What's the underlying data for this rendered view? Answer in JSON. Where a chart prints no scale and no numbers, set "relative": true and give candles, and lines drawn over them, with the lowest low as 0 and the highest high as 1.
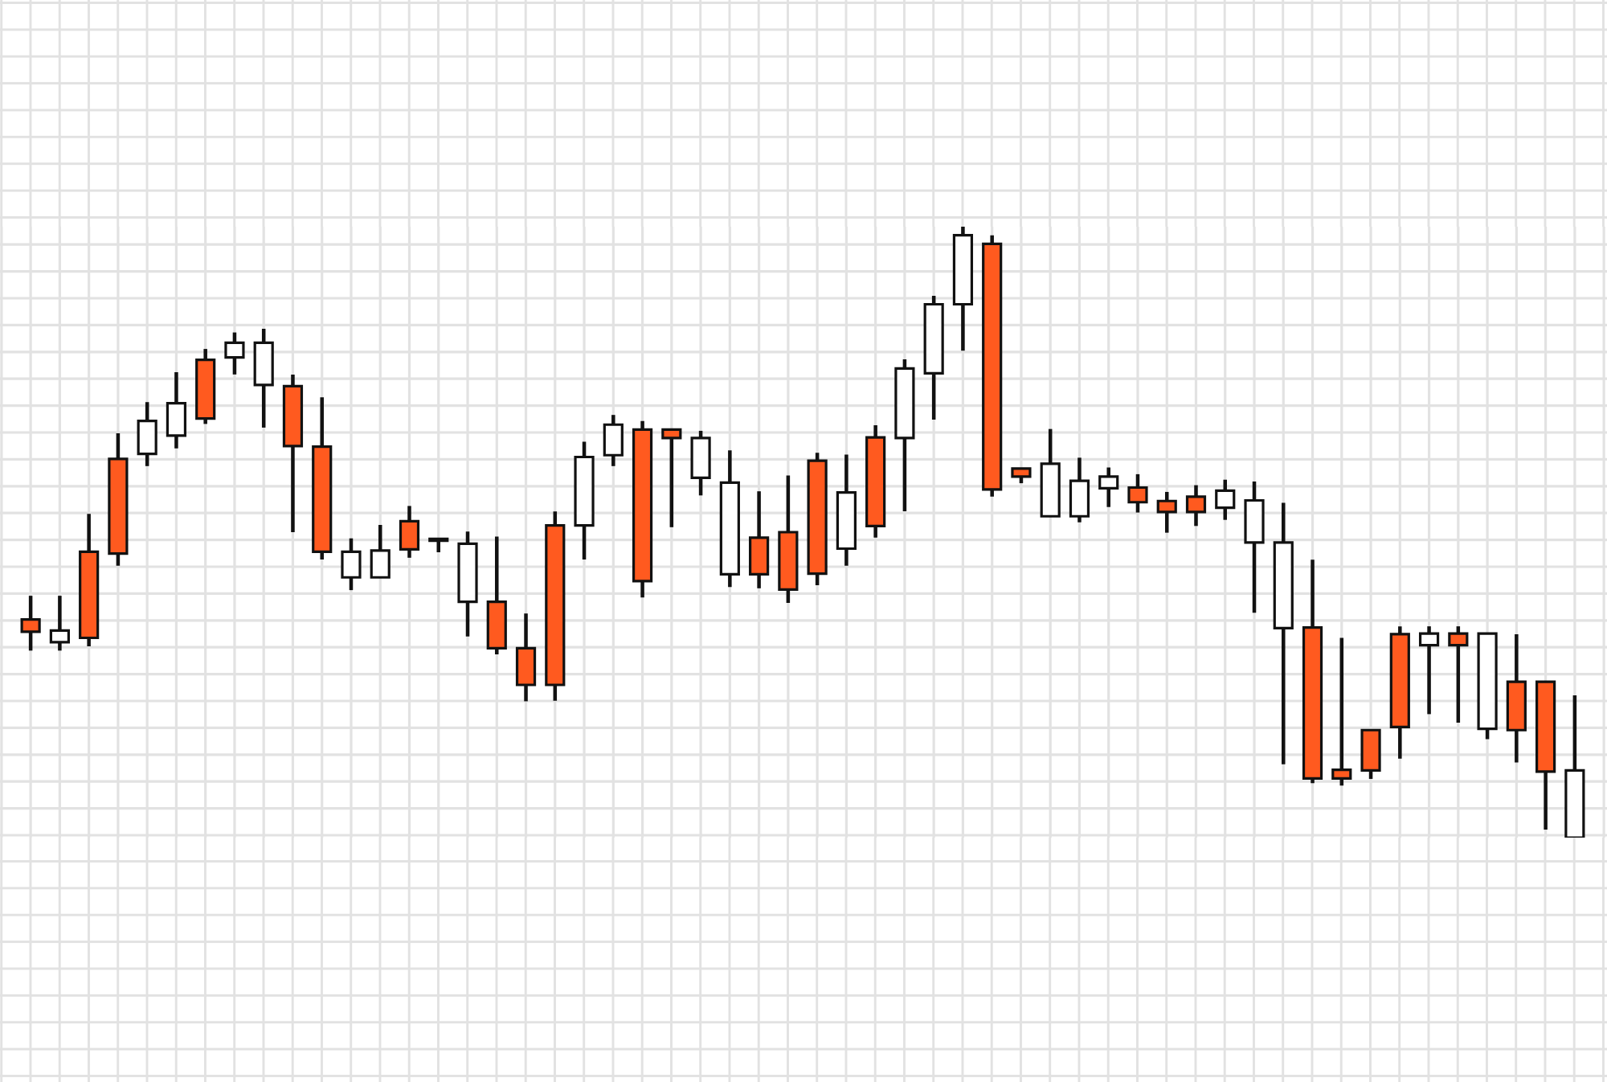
{
  "chart_data": {
    "type": "candlestick",
    "relative": true,
    "grid": true,
    "categories": [
      null,
      null,
      null,
      null,
      null,
      null,
      null,
      null,
      null,
      null,
      null,
      null,
      null,
      null,
      null,
      null,
      null,
      null,
      null,
      null,
      null,
      null,
      null,
      null,
      null,
      null,
      null,
      null,
      null,
      null,
      null,
      null,
      null,
      null,
      null,
      null,
      null,
      null,
      null,
      null,
      null,
      null,
      null,
      null,
      null,
      null,
      null,
      null,
      null,
      null,
      null,
      null,
      null,
      null
    ],
    "ohlc": [
      [
        0.357,
        0.395,
        0.307,
        0.337
      ],
      [
        0.32,
        0.395,
        0.307,
        0.339
      ],
      [
        0.468,
        0.529,
        0.314,
        0.327
      ],
      [
        0.62,
        0.661,
        0.446,
        0.465
      ],
      [
        0.628,
        0.712,
        0.609,
        0.682
      ],
      [
        0.658,
        0.761,
        0.638,
        0.711
      ],
      [
        0.782,
        0.799,
        0.678,
        0.686
      ],
      [
        0.786,
        0.826,
        0.759,
        0.81
      ],
      [
        0.741,
        0.832,
        0.672,
        0.81
      ],
      [
        0.739,
        0.757,
        0.501,
        0.641
      ],
      [
        0.64,
        0.72,
        0.456,
        0.468
      ],
      [
        0.426,
        0.489,
        0.406,
        0.468
      ],
      [
        0.426,
        0.511,
        0.426,
        0.47
      ],
      [
        0.518,
        0.542,
        0.459,
        0.472
      ],
      [
        0.486,
        0.489,
        0.468,
        0.489
      ],
      [
        0.386,
        0.5,
        0.33,
        0.481
      ],
      [
        0.386,
        0.492,
        0.301,
        0.31
      ],
      [
        0.31,
        0.366,
        0.224,
        0.25
      ],
      [
        0.511,
        0.533,
        0.225,
        0.25
      ],
      [
        0.511,
        0.647,
        0.456,
        0.623
      ],
      [
        0.626,
        0.691,
        0.609,
        0.676
      ],
      [
        0.668,
        0.681,
        0.394,
        0.42
      ],
      [
        0.668,
        0.668,
        0.509,
        0.654
      ],
      [
        0.589,
        0.665,
        0.561,
        0.654
      ],
      [
        0.431,
        0.633,
        0.411,
        0.581
      ],
      [
        0.491,
        0.566,
        0.409,
        0.431
      ],
      [
        0.5,
        0.592,
        0.385,
        0.406
      ],
      [
        0.617,
        0.629,
        0.414,
        0.432
      ],
      [
        0.473,
        0.626,
        0.446,
        0.565
      ],
      [
        0.655,
        0.674,
        0.492,
        0.51
      ],
      [
        0.654,
        0.782,
        0.535,
        0.768
      ],
      [
        0.76,
        0.886,
        0.685,
        0.873
      ],
      [
        0.873,
        1,
        0.798,
        0.986
      ],
      [
        0.972,
        0.985,
        0.559,
        0.57
      ],
      [
        0.604,
        0.604,
        0.581,
        0.591
      ],
      [
        0.526,
        0.668,
        0.526,
        0.612
      ],
      [
        0.526,
        0.621,
        0.517,
        0.584
      ],
      [
        0.572,
        0.605,
        0.542,
        0.591
      ],
      [
        0.573,
        0.594,
        0.533,
        0.549
      ],
      [
        0.551,
        0.565,
        0.5,
        0.533
      ],
      [
        0.558,
        0.576,
        0.511,
        0.533
      ],
      [
        0.54,
        0.585,
        0.521,
        0.568
      ],
      [
        0.483,
        0.582,
        0.369,
        0.552
      ],
      [
        0.343,
        0.547,
        0.121,
        0.483
      ],
      [
        0.344,
        0.454,
        0.09,
        0.097
      ],
      [
        0.111,
        0.326,
        0.086,
        0.097
      ],
      [
        0.176,
        0.176,
        0.097,
        0.11
      ],
      [
        0.333,
        0.345,
        0.13,
        0.181
      ],
      [
        0.315,
        0.345,
        0.203,
        0.334
      ],
      [
        0.334,
        0.345,
        0.189,
        0.315
      ],
      [
        0.178,
        0.334,
        0.162,
        0.334
      ],
      [
        0.255,
        0.332,
        0.124,
        0.176
      ],
      [
        0.255,
        0.255,
        0.014,
        0.108
      ],
      [
        0,
        0.232,
        0,
        0.11
      ]
    ],
    "colors": [
      "#ff5a1f",
      "#ffffff",
      "#ff5a1f",
      "#ff5a1f",
      "#ffffff",
      "#ffffff",
      "#ff5a1f",
      "#ffffff",
      "#ffffff",
      "#ff5a1f",
      "#ff5a1f",
      "#ffffff",
      "#ffffff",
      "#ff5a1f",
      "#ffffff",
      "#ffffff",
      "#ff5a1f",
      "#ff5a1f",
      "#ff5a1f",
      "#ffffff",
      "#ffffff",
      "#ff5a1f",
      "#ff5a1f",
      "#ffffff",
      "#ffffff",
      "#ff5a1f",
      "#ff5a1f",
      "#ff5a1f",
      "#ffffff",
      "#ff5a1f",
      "#ffffff",
      "#ffffff",
      "#ffffff",
      "#ff5a1f",
      "#ff5a1f",
      "#ffffff",
      "#ffffff",
      "#ffffff",
      "#ff5a1f",
      "#ff5a1f",
      "#ff5a1f",
      "#ffffff",
      "#ffffff",
      "#ffffff",
      "#ff5a1f",
      "#ff5a1f",
      "#ff5a1f",
      "#ff5a1f",
      "#ffffff",
      "#ff5a1f",
      "#ffffff",
      "#ff5a1f",
      "#ff5a1f",
      "#ffffff"
    ]
  }
}
